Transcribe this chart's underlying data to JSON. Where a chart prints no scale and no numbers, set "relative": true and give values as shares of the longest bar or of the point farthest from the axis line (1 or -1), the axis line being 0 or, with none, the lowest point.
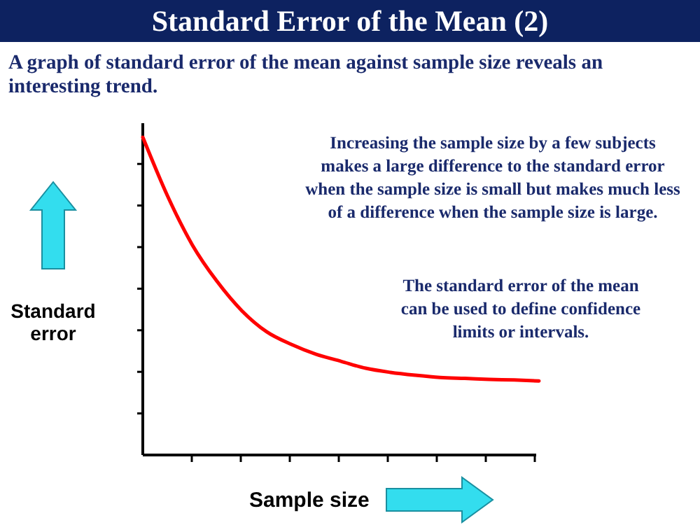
{
  "chart_data": {
    "type": "line",
    "title": "Standard Error of the Mean (2)",
    "subtitle": "A graph of standard error of the mean against sample size reveals an interesting trend.",
    "xlabel": "Sample size",
    "ylabel": "Standard error",
    "relative": true,
    "categories": [
      null,
      null,
      null,
      null,
      null,
      null,
      null,
      null,
      null,
      null,
      null,
      null,
      null,
      null,
      null,
      null,
      null
    ],
    "series": [
      {
        "color": "#ff0000",
        "values": [
          1.0,
          0.815,
          0.661,
          0.546,
          0.454,
          0.388,
          0.348,
          0.317,
          0.295,
          0.273,
          0.26,
          0.251,
          0.244,
          0.241,
          0.238,
          0.236,
          0.233
        ]
      }
    ],
    "marker": "none",
    "line_style": "solid",
    "grid": false,
    "annotations": [
      "Increasing the sample size by a few subjects makes a large difference to the standard error when the sample size is small but makes much less of a difference when the sample size is large.",
      "The standard error of the mean can be used to define confidence limits or intervals."
    ]
  }
}
